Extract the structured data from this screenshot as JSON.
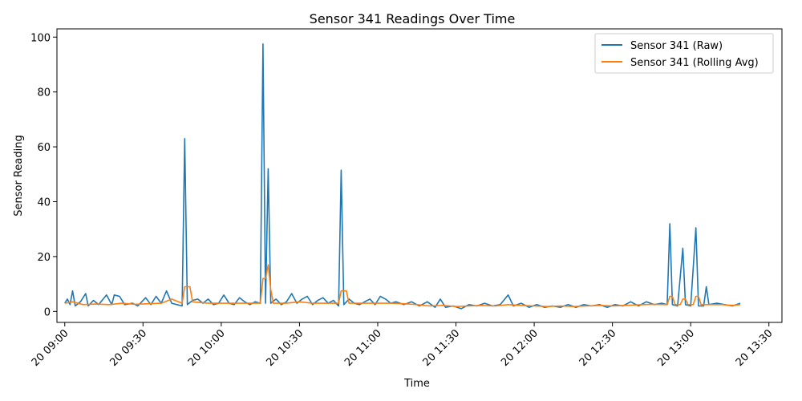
{
  "chart_data": {
    "type": "line",
    "title": "Sensor 341 Readings Over Time",
    "xlabel": "Time",
    "ylabel": "Sensor Reading",
    "xlim": [
      "20 08:57",
      "20 13:35"
    ],
    "ylim": [
      -4,
      103
    ],
    "x_ticks": [
      "20 09:00",
      "20 09:30",
      "20 10:00",
      "20 10:30",
      "20 11:00",
      "20 11:30",
      "20 12:00",
      "20 12:30",
      "20 13:00",
      "20 13:30"
    ],
    "y_ticks": [
      0,
      20,
      40,
      60,
      80,
      100
    ],
    "grid": false,
    "legend": "top-right",
    "colors": {
      "raw": "#1f77b4",
      "avg": "#ff7f0e"
    },
    "series": [
      {
        "name": "Sensor 341 (Raw)",
        "points": [
          [
            "20 09:00",
            3.0
          ],
          [
            "20 09:01",
            4.5
          ],
          [
            "20 09:02",
            2.5
          ],
          [
            "20 09:03",
            7.5
          ],
          [
            "20 09:04",
            2.0
          ],
          [
            "20 09:06",
            3.5
          ],
          [
            "20 09:08",
            6.5
          ],
          [
            "20 09:09",
            2.0
          ],
          [
            "20 09:11",
            4.0
          ],
          [
            "20 09:13",
            2.5
          ],
          [
            "20 09:16",
            6.0
          ],
          [
            "20 09:18",
            2.5
          ],
          [
            "20 09:19",
            6.0
          ],
          [
            "20 09:21",
            5.5
          ],
          [
            "20 09:23",
            2.5
          ],
          [
            "20 09:26",
            3.0
          ],
          [
            "20 09:28",
            2.0
          ],
          [
            "20 09:31",
            5.0
          ],
          [
            "20 09:33",
            2.5
          ],
          [
            "20 09:35",
            5.5
          ],
          [
            "20 09:37",
            3.0
          ],
          [
            "20 09:39",
            7.5
          ],
          [
            "20 09:41",
            3.0
          ],
          [
            "20 09:43",
            2.5
          ],
          [
            "20 09:45",
            2.0
          ],
          [
            "20 09:46",
            63.0
          ],
          [
            "20 09:47",
            2.5
          ],
          [
            "20 09:49",
            4.0
          ],
          [
            "20 09:51",
            4.5
          ],
          [
            "20 09:53",
            3.0
          ],
          [
            "20 09:55",
            4.5
          ],
          [
            "20 09:57",
            2.5
          ],
          [
            "20 09:59",
            3.0
          ],
          [
            "20 10:01",
            6.0
          ],
          [
            "20 10:03",
            3.0
          ],
          [
            "20 10:05",
            2.5
          ],
          [
            "20 10:07",
            5.0
          ],
          [
            "20 10:09",
            3.5
          ],
          [
            "20 10:11",
            2.5
          ],
          [
            "20 10:13",
            3.5
          ],
          [
            "20 10:15",
            3.0
          ],
          [
            "20 10:16",
            97.5
          ],
          [
            "20 10:17",
            3.0
          ],
          [
            "20 10:18",
            52.0
          ],
          [
            "20 10:19",
            3.0
          ],
          [
            "20 10:21",
            4.5
          ],
          [
            "20 10:23",
            2.5
          ],
          [
            "20 10:25",
            3.5
          ],
          [
            "20 10:27",
            6.5
          ],
          [
            "20 10:29",
            3.0
          ],
          [
            "20 10:31",
            4.5
          ],
          [
            "20 10:33",
            5.5
          ],
          [
            "20 10:35",
            2.5
          ],
          [
            "20 10:37",
            4.0
          ],
          [
            "20 10:39",
            5.0
          ],
          [
            "20 10:41",
            3.0
          ],
          [
            "20 10:43",
            4.0
          ],
          [
            "20 10:45",
            2.0
          ],
          [
            "20 10:46",
            51.5
          ],
          [
            "20 10:47",
            2.5
          ],
          [
            "20 10:49",
            4.5
          ],
          [
            "20 10:51",
            3.0
          ],
          [
            "20 10:53",
            2.5
          ],
          [
            "20 10:55",
            3.5
          ],
          [
            "20 10:57",
            4.5
          ],
          [
            "20 10:59",
            2.5
          ],
          [
            "20 11:01",
            5.5
          ],
          [
            "20 11:03",
            4.5
          ],
          [
            "20 11:05",
            3.0
          ],
          [
            "20 11:07",
            3.5
          ],
          [
            "20 11:10",
            2.5
          ],
          [
            "20 11:13",
            3.5
          ],
          [
            "20 11:16",
            2.0
          ],
          [
            "20 11:19",
            3.5
          ],
          [
            "20 11:22",
            1.5
          ],
          [
            "20 11:24",
            4.5
          ],
          [
            "20 11:26",
            1.5
          ],
          [
            "20 11:29",
            2.0
          ],
          [
            "20 11:32",
            1.0
          ],
          [
            "20 11:35",
            2.5
          ],
          [
            "20 11:38",
            2.0
          ],
          [
            "20 11:41",
            3.0
          ],
          [
            "20 11:44",
            2.0
          ],
          [
            "20 11:47",
            2.5
          ],
          [
            "20 11:50",
            6.0
          ],
          [
            "20 11:52",
            2.0
          ],
          [
            "20 11:55",
            3.0
          ],
          [
            "20 11:58",
            1.5
          ],
          [
            "20 12:01",
            2.5
          ],
          [
            "20 12:04",
            1.5
          ],
          [
            "20 12:07",
            2.0
          ],
          [
            "20 12:10",
            1.5
          ],
          [
            "20 12:13",
            2.5
          ],
          [
            "20 12:16",
            1.5
          ],
          [
            "20 12:19",
            2.5
          ],
          [
            "20 12:22",
            2.0
          ],
          [
            "20 12:25",
            2.5
          ],
          [
            "20 12:28",
            1.5
          ],
          [
            "20 12:31",
            2.5
          ],
          [
            "20 12:34",
            2.0
          ],
          [
            "20 12:37",
            3.5
          ],
          [
            "20 12:40",
            2.0
          ],
          [
            "20 12:43",
            3.5
          ],
          [
            "20 12:46",
            2.5
          ],
          [
            "20 12:49",
            3.0
          ],
          [
            "20 12:51",
            2.5
          ],
          [
            "20 12:52",
            32.0
          ],
          [
            "20 12:53",
            2.5
          ],
          [
            "20 12:55",
            2.0
          ],
          [
            "20 12:57",
            23.0
          ],
          [
            "20 12:58",
            2.5
          ],
          [
            "20 13:00",
            2.0
          ],
          [
            "20 13:02",
            30.5
          ],
          [
            "20 13:03",
            2.0
          ],
          [
            "20 13:05",
            2.0
          ],
          [
            "20 13:06",
            9.0
          ],
          [
            "20 13:07",
            2.5
          ],
          [
            "20 13:10",
            3.0
          ],
          [
            "20 13:13",
            2.5
          ],
          [
            "20 13:16",
            2.0
          ],
          [
            "20 13:19",
            3.0
          ]
        ]
      },
      {
        "name": "Sensor 341 (Rolling Avg)",
        "points": [
          [
            "20 09:00",
            3.0
          ],
          [
            "20 09:03",
            3.5
          ],
          [
            "20 09:07",
            2.5
          ],
          [
            "20 09:12",
            2.7
          ],
          [
            "20 09:17",
            2.5
          ],
          [
            "20 09:22",
            3.0
          ],
          [
            "20 09:27",
            2.6
          ],
          [
            "20 09:32",
            2.8
          ],
          [
            "20 09:37",
            3.0
          ],
          [
            "20 09:41",
            4.5
          ],
          [
            "20 09:45",
            3.0
          ],
          [
            "20 09:46",
            9.0
          ],
          [
            "20 09:48",
            9.0
          ],
          [
            "20 09:49",
            3.5
          ],
          [
            "20 09:55",
            3.0
          ],
          [
            "20 10:00",
            3.0
          ],
          [
            "20 10:05",
            3.0
          ],
          [
            "20 10:10",
            3.0
          ],
          [
            "20 10:15",
            3.0
          ],
          [
            "20 10:16",
            12.0
          ],
          [
            "20 10:17",
            12.0
          ],
          [
            "20 10:18",
            17.0
          ],
          [
            "20 10:19",
            8.0
          ],
          [
            "20 10:20",
            3.0
          ],
          [
            "20 10:25",
            3.0
          ],
          [
            "20 10:30",
            3.5
          ],
          [
            "20 10:35",
            3.0
          ],
          [
            "20 10:40",
            3.0
          ],
          [
            "20 10:45",
            3.0
          ],
          [
            "20 10:46",
            7.5
          ],
          [
            "20 10:48",
            7.5
          ],
          [
            "20 10:49",
            3.0
          ],
          [
            "20 10:55",
            3.0
          ],
          [
            "20 11:00",
            3.0
          ],
          [
            "20 11:05",
            3.0
          ],
          [
            "20 11:10",
            2.8
          ],
          [
            "20 11:15",
            2.5
          ],
          [
            "20 11:20",
            2.0
          ],
          [
            "20 11:25",
            2.2
          ],
          [
            "20 11:30",
            1.8
          ],
          [
            "20 11:35",
            2.0
          ],
          [
            "20 11:40",
            2.2
          ],
          [
            "20 11:45",
            2.0
          ],
          [
            "20 11:50",
            2.5
          ],
          [
            "20 11:55",
            2.2
          ],
          [
            "20 12:00",
            2.0
          ],
          [
            "20 12:05",
            1.8
          ],
          [
            "20 12:10",
            2.0
          ],
          [
            "20 12:15",
            1.8
          ],
          [
            "20 12:20",
            2.0
          ],
          [
            "20 12:25",
            2.2
          ],
          [
            "20 12:30",
            2.0
          ],
          [
            "20 12:35",
            2.2
          ],
          [
            "20 12:40",
            2.4
          ],
          [
            "20 12:45",
            2.6
          ],
          [
            "20 12:51",
            2.5
          ],
          [
            "20 12:52",
            5.5
          ],
          [
            "20 12:53",
            5.5
          ],
          [
            "20 12:54",
            2.5
          ],
          [
            "20 12:56",
            2.5
          ],
          [
            "20 12:57",
            4.5
          ],
          [
            "20 12:58",
            4.5
          ],
          [
            "20 12:59",
            2.5
          ],
          [
            "20 13:01",
            2.5
          ],
          [
            "20 13:02",
            5.5
          ],
          [
            "20 13:03",
            5.5
          ],
          [
            "20 13:04",
            2.5
          ],
          [
            "20 13:08",
            2.5
          ],
          [
            "20 13:12",
            2.5
          ],
          [
            "20 13:16",
            2.2
          ],
          [
            "20 13:19",
            2.5
          ]
        ]
      }
    ]
  }
}
